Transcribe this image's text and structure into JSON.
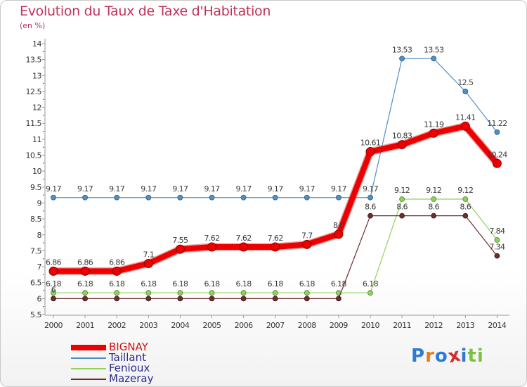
{
  "header": {
    "title": "Evolution du Taux de Taxe d'Habitation",
    "subtitle": "(en %)"
  },
  "logo": {
    "text": "Proxiti",
    "letters": [
      "P",
      "r",
      "o",
      "x",
      "i",
      "t",
      "i"
    ],
    "colors": [
      "#2b7bd4",
      "#e87b1a",
      "#2b7bd4",
      "#d42b2b",
      "#2b7bd4",
      "#7cc242",
      "#7cc242"
    ]
  },
  "chart_data": {
    "type": "line",
    "title": "Evolution du Taux de Taxe d'Habitation",
    "ylabel": "(en %)",
    "xlabel": "",
    "x": [
      2000,
      2001,
      2002,
      2003,
      2004,
      2005,
      2006,
      2007,
      2008,
      2009,
      2010,
      2011,
      2012,
      2013,
      2014
    ],
    "ylim": [
      5.5,
      14
    ],
    "yticks": [
      5.5,
      6,
      6.5,
      7,
      7.5,
      8,
      8.5,
      9,
      9.5,
      10,
      10.5,
      11,
      11.5,
      12,
      12.5,
      13,
      13.5,
      14
    ],
    "grid": false,
    "legend_position": "bottom-left",
    "series": [
      {
        "name": "Taillant",
        "color": "#4e90c8",
        "values": [
          9.17,
          9.17,
          9.17,
          9.17,
          9.17,
          9.17,
          9.17,
          9.17,
          9.17,
          9.17,
          9.17,
          13.53,
          13.53,
          12.5,
          11.22
        ],
        "labels": [
          "9.17",
          "9.17",
          "9.17",
          "9.17",
          "9.17",
          "9.17",
          "9.17",
          "9.17",
          "9.17",
          "9.17",
          "9.17",
          "13.53",
          "13.53",
          "12.5",
          "11.22"
        ]
      },
      {
        "name": "Fenioux",
        "color": "#8fd35a",
        "values": [
          6.18,
          6.18,
          6.18,
          6.18,
          6.18,
          6.18,
          6.18,
          6.18,
          6.18,
          6.18,
          6.18,
          9.12,
          9.12,
          9.12,
          7.84
        ],
        "labels": [
          "6.18",
          "6.18",
          "6.18",
          "6.18",
          "6.18",
          "6.18",
          "6.18",
          "6.18",
          "6.18",
          "6.18",
          "6.18",
          "9.12",
          "9.12",
          "9.12",
          "7.84"
        ]
      },
      {
        "name": "Mazeray",
        "color": "#6b2e2e",
        "values": [
          6.0,
          6.0,
          6.0,
          6.0,
          6.0,
          6.0,
          6.0,
          6.0,
          6.0,
          6.0,
          8.6,
          8.6,
          8.6,
          8.6,
          7.34
        ],
        "labels": [
          "6",
          "",
          "",
          "",
          "",
          "",
          "",
          "",
          "",
          "",
          "8.6",
          "8.6",
          "8.6",
          "8.6",
          "7.34"
        ]
      },
      {
        "name": "BIGNAY",
        "color": "#ee0000",
        "values": [
          6.86,
          6.86,
          6.86,
          7.1,
          7.55,
          7.62,
          7.62,
          7.62,
          7.7,
          8.02,
          10.61,
          10.83,
          11.19,
          11.41,
          10.24
        ],
        "labels": [
          "6.86",
          "6.86",
          "6.86",
          "7.1",
          "7.55",
          "7.62",
          "7.62",
          "7.62",
          "7.7",
          "8.0",
          "10.61",
          "10.83",
          "11.19",
          "11.41",
          "10.24"
        ]
      }
    ]
  }
}
